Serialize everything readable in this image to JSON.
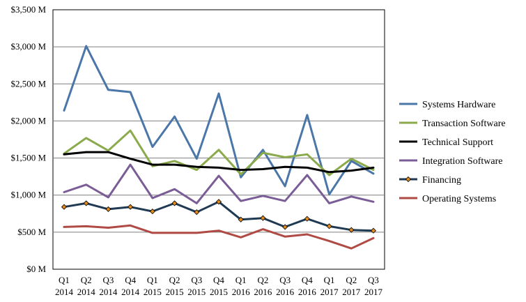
{
  "chart_data": {
    "type": "line",
    "title": "",
    "xlabel": "",
    "ylabel": "",
    "ylim": [
      0,
      3500
    ],
    "grid": true,
    "legend_position": "right",
    "y_ticks": [
      {
        "value": 0,
        "label": "$0 M"
      },
      {
        "value": 500,
        "label": "$500 M"
      },
      {
        "value": 1000,
        "label": "$1,000 M"
      },
      {
        "value": 1500,
        "label": "$1,500 M"
      },
      {
        "value": 2000,
        "label": "$2,000 M"
      },
      {
        "value": 2500,
        "label": "$2,500 M"
      },
      {
        "value": 3000,
        "label": "$3,000 M"
      },
      {
        "value": 3500,
        "label": "$3,500 M"
      }
    ],
    "categories": [
      {
        "q": "Q1",
        "year": "2014"
      },
      {
        "q": "Q2",
        "year": "2014"
      },
      {
        "q": "Q3",
        "year": "2014"
      },
      {
        "q": "Q4",
        "year": "2014"
      },
      {
        "q": "Q1",
        "year": "2015"
      },
      {
        "q": "Q2",
        "year": "2015"
      },
      {
        "q": "Q3",
        "year": "2015"
      },
      {
        "q": "Q4",
        "year": "2015"
      },
      {
        "q": "Q1",
        "year": "2016"
      },
      {
        "q": "Q2",
        "year": "2016"
      },
      {
        "q": "Q3",
        "year": "2016"
      },
      {
        "q": "Q4",
        "year": "2016"
      },
      {
        "q": "Q1",
        "year": "2017"
      },
      {
        "q": "Q2",
        "year": "2017"
      },
      {
        "q": "Q3",
        "year": "2017"
      }
    ],
    "series": [
      {
        "name": "Systems Hardware",
        "color": "#4a76a8",
        "marker": "none",
        "values": [
          2140,
          3010,
          2420,
          2390,
          1650,
          2060,
          1490,
          2370,
          1240,
          1610,
          1120,
          2080,
          1010,
          1460,
          1290
        ]
      },
      {
        "name": "Transaction Software",
        "color": "#8aaa4c",
        "marker": "none",
        "values": [
          1560,
          1770,
          1600,
          1870,
          1390,
          1460,
          1340,
          1610,
          1280,
          1570,
          1510,
          1550,
          1270,
          1490,
          1340
        ]
      },
      {
        "name": "Technical Support",
        "color": "#000000",
        "marker": "none",
        "values": [
          1550,
          1580,
          1580,
          1490,
          1410,
          1410,
          1380,
          1370,
          1340,
          1350,
          1380,
          1370,
          1310,
          1330,
          1370
        ]
      },
      {
        "name": "Integration Software",
        "color": "#7a5d96",
        "marker": "none",
        "values": [
          1040,
          1140,
          970,
          1410,
          960,
          1080,
          890,
          1260,
          920,
          990,
          920,
          1270,
          890,
          980,
          910
        ]
      },
      {
        "name": "Financing",
        "color": "#1f3a52",
        "marker": "diamond",
        "marker_color": "#e08a1e",
        "values": [
          840,
          890,
          810,
          840,
          780,
          890,
          770,
          910,
          670,
          690,
          570,
          680,
          580,
          530,
          520
        ]
      },
      {
        "name": "Operating Systems",
        "color": "#b04a45",
        "marker": "none",
        "values": [
          570,
          580,
          560,
          590,
          490,
          490,
          490,
          520,
          430,
          540,
          440,
          470,
          380,
          280,
          420
        ]
      }
    ]
  }
}
